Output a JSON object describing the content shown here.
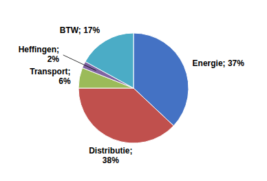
{
  "chart_data": {
    "type": "pie",
    "values": [
      37,
      38,
      6,
      2,
      17
    ],
    "value_labels": [
      "Energie; 37%",
      "Distributie;\n38%",
      "Transport;\n6%",
      "Heffingen;\n2%",
      "BTW; 17%"
    ],
    "colors": [
      "#4472C4",
      "#C0504D",
      "#9BBB59",
      "#8064A2",
      "#4BACC6"
    ]
  }
}
